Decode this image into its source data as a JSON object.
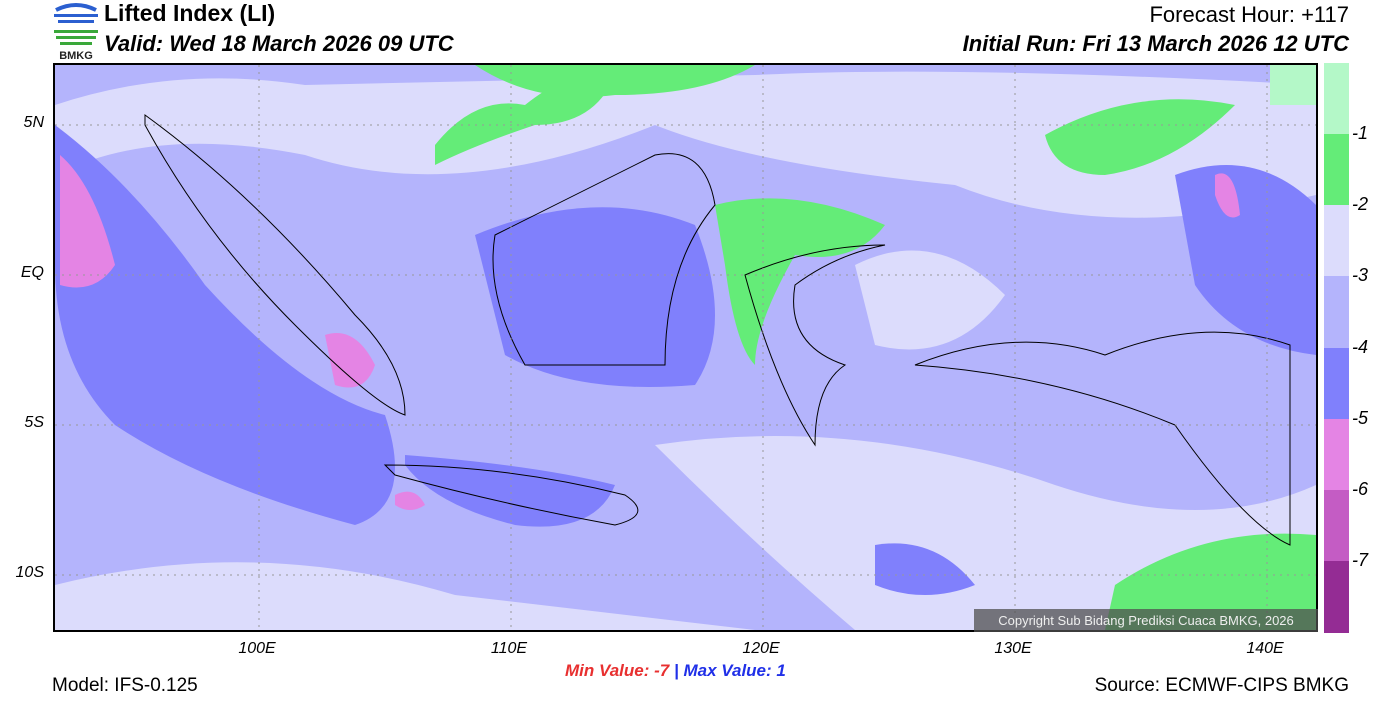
{
  "header": {
    "logo_text": "BMKG",
    "title": "Lifted Index (LI)",
    "valid": "Valid: Wed 18 March 2026 09 UTC",
    "forecast_hour": "Forecast Hour: +117",
    "initial_run": "Initial Run: Fri 13 March 2026 12 UTC"
  },
  "map": {
    "lat_labels": [
      "5N",
      "EQ",
      "5S",
      "10S"
    ],
    "lon_labels": [
      "100E",
      "110E",
      "120E",
      "130E",
      "140E"
    ],
    "copyright": "Copyright Sub Bidang Prediksi Cuaca BMKG, 2026"
  },
  "colorbar": {
    "colors": [
      "#b4f8c8",
      "#64ec78",
      "#dcdcfc",
      "#b4b4fc",
      "#8080fc",
      "#e484e4",
      "#c45cc4",
      "#942c94"
    ],
    "labels": [
      "-1",
      "-2",
      "-3",
      "-4",
      "-5",
      "-6",
      "-7"
    ]
  },
  "footer": {
    "model": "Model: IFS-0.125",
    "min_label": "Min Value:",
    "min_value": "-7",
    "separator": "|",
    "max_label": "Max Value:",
    "max_value": "1",
    "min_color": "#e83030",
    "max_color": "#2030e8",
    "source": "Source: ECMWF-CIPS BMKG"
  }
}
